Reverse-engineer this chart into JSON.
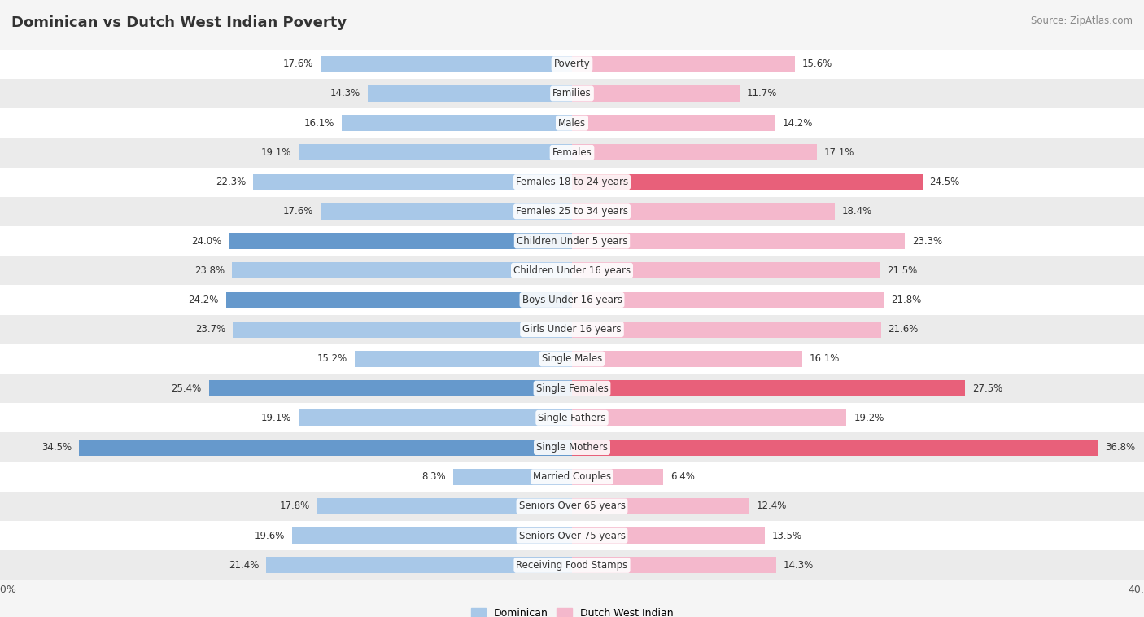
{
  "title": "Dominican vs Dutch West Indian Poverty",
  "source": "Source: ZipAtlas.com",
  "categories": [
    "Poverty",
    "Families",
    "Males",
    "Females",
    "Females 18 to 24 years",
    "Females 25 to 34 years",
    "Children Under 5 years",
    "Children Under 16 years",
    "Boys Under 16 years",
    "Girls Under 16 years",
    "Single Males",
    "Single Females",
    "Single Fathers",
    "Single Mothers",
    "Married Couples",
    "Seniors Over 65 years",
    "Seniors Over 75 years",
    "Receiving Food Stamps"
  ],
  "dominican": [
    17.6,
    14.3,
    16.1,
    19.1,
    22.3,
    17.6,
    24.0,
    23.8,
    24.2,
    23.7,
    15.2,
    25.4,
    19.1,
    34.5,
    8.3,
    17.8,
    19.6,
    21.4
  ],
  "dutch_west_indian": [
    15.6,
    11.7,
    14.2,
    17.1,
    24.5,
    18.4,
    23.3,
    21.5,
    21.8,
    21.6,
    16.1,
    27.5,
    19.2,
    36.8,
    6.4,
    12.4,
    13.5,
    14.3
  ],
  "dominican_color_normal": "#a8c8e8",
  "dominican_color_highlight": "#6699cc",
  "dutch_west_indian_color_normal": "#f4b8cc",
  "dutch_west_indian_color_highlight": "#e8607a",
  "dominican_highlight": [
    6,
    8,
    11,
    13
  ],
  "dutch_highlight": [
    4,
    11,
    13
  ],
  "axis_max": 40.0,
  "bg_color": "#f5f5f5",
  "row_bg_even": "#ffffff",
  "row_bg_odd": "#ebebeb",
  "bar_height": 0.55,
  "legend_label_dominican": "Dominican",
  "legend_label_dutch": "Dutch West Indian"
}
